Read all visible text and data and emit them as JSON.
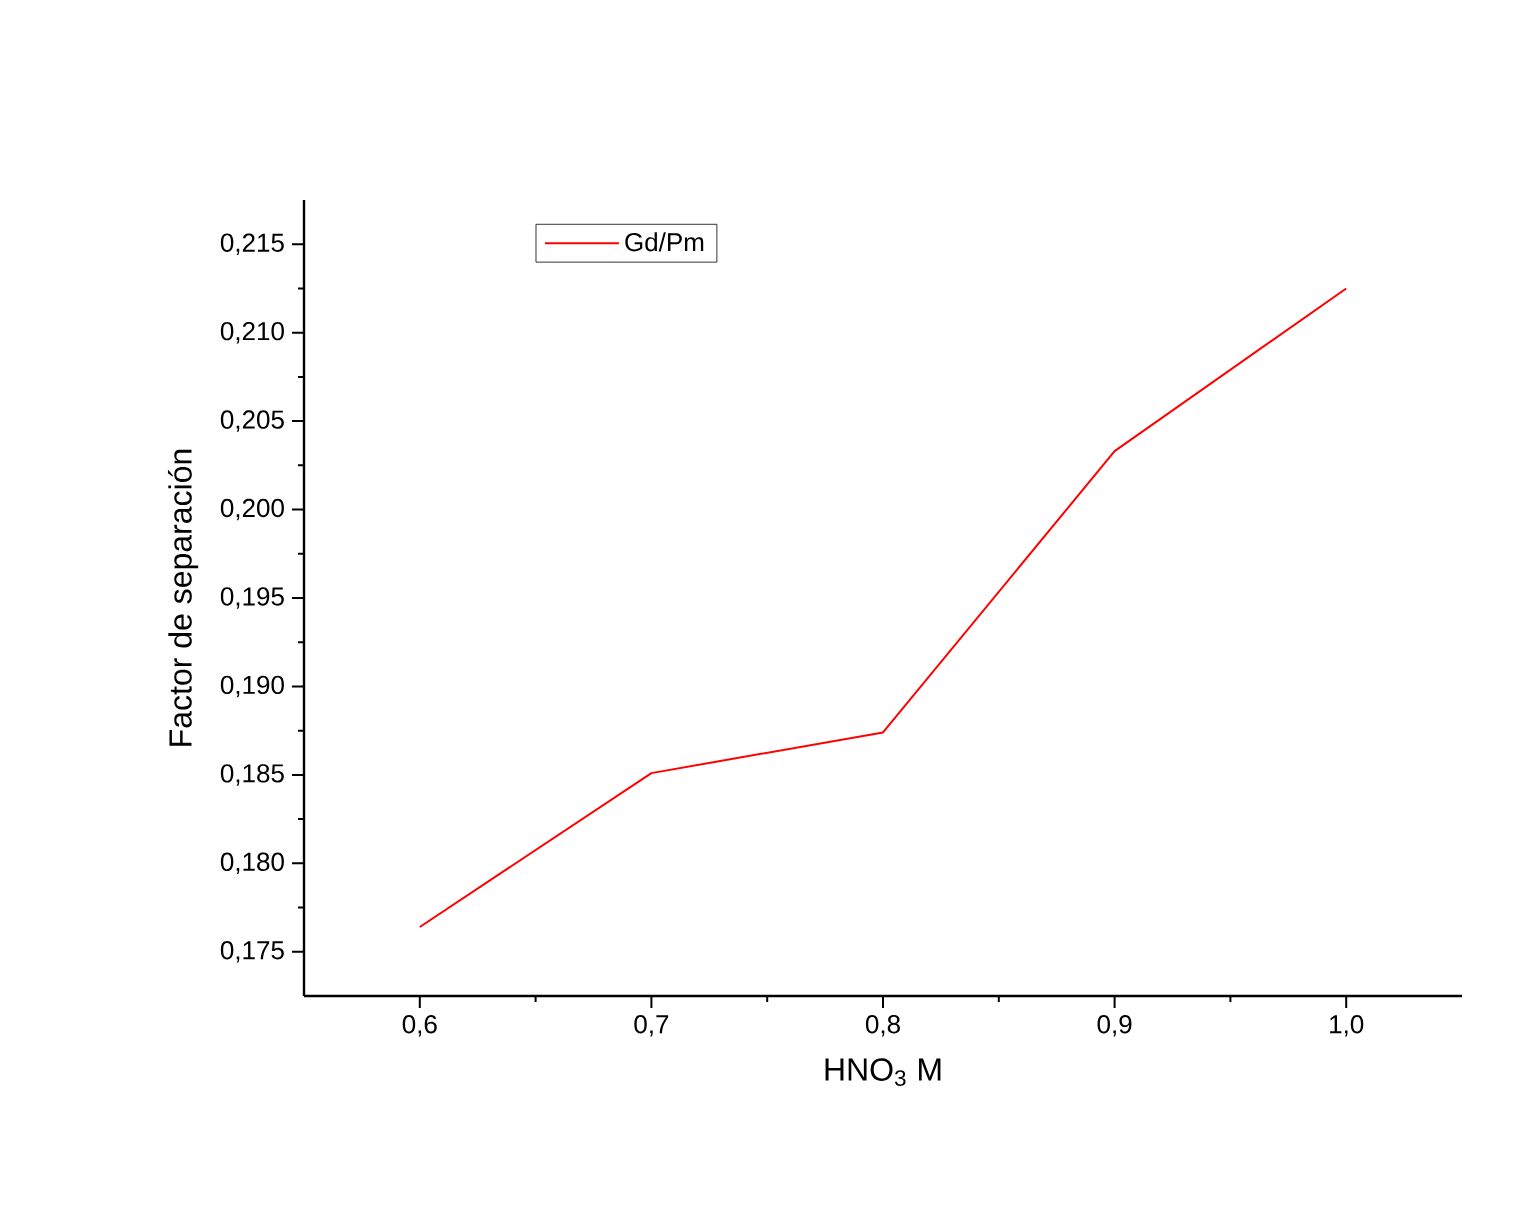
{
  "chart_data": {
    "type": "line",
    "xlabel": "HNO$_{3}$ M",
    "ylabel": "Factor de separación",
    "x": [
      0.6,
      0.7,
      0.8,
      0.9,
      1.0
    ],
    "series": [
      {
        "name": "Gd/Pm",
        "color": "#ff0000",
        "values": [
          0.1764,
          0.1851,
          0.1874,
          0.2033,
          0.2125
        ]
      }
    ],
    "xlim": [
      0.55,
      1.05
    ],
    "xticks": [
      {
        "value": 0.6,
        "label": "0,6"
      },
      {
        "value": 0.7,
        "label": "0,7"
      },
      {
        "value": 0.8,
        "label": "0,8"
      },
      {
        "value": 0.9,
        "label": "0,9"
      },
      {
        "value": 1.0,
        "label": "1,0"
      }
    ],
    "ylim": [
      0.1725,
      0.2175
    ],
    "yticks": [
      {
        "value": 0.175,
        "label": "0,175"
      },
      {
        "value": 0.18,
        "label": "0,180"
      },
      {
        "value": 0.185,
        "label": "0,185"
      },
      {
        "value": 0.19,
        "label": "0,190"
      },
      {
        "value": 0.195,
        "label": "0,195"
      },
      {
        "value": 0.2,
        "label": "0,200"
      },
      {
        "value": 0.205,
        "label": "0,205"
      },
      {
        "value": 0.21,
        "label": "0,210"
      },
      {
        "value": 0.215,
        "label": "0,215"
      }
    ],
    "legend": "top left",
    "grid": false,
    "marker": "none",
    "line_style": "solid"
  }
}
